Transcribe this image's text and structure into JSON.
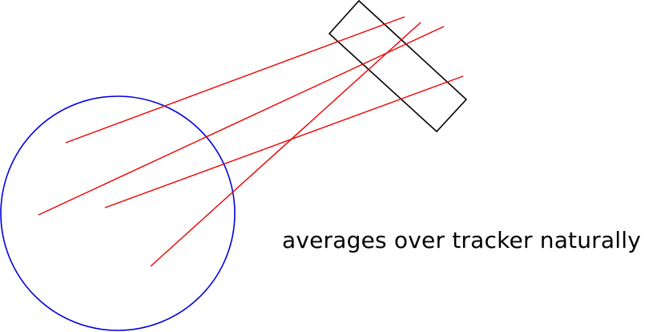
{
  "caption": "averages over tracker naturally",
  "colors": {
    "circle": "#0000dd",
    "rays": "#ee0000",
    "detector": "#000000",
    "background": "#ffffff"
  },
  "elements": {
    "circle": "circle-outline",
    "detector": "rotated-rectangle",
    "rays": "4 red lines"
  }
}
